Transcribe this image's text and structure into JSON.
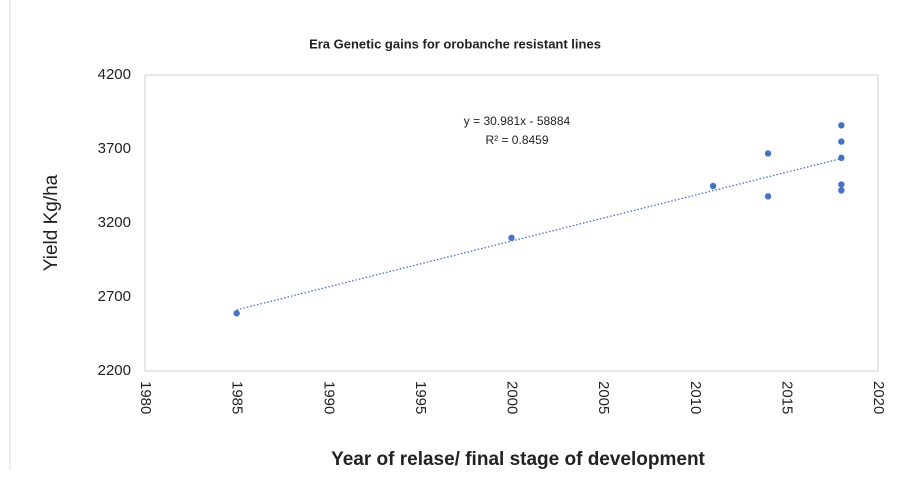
{
  "chart_data": {
    "type": "scatter",
    "title": "Era Genetic gains for orobanche  resistant lines",
    "xlabel": "Year of relase/ final stage of development",
    "ylabel": "Yield Kg/ha",
    "x": [
      1985,
      2000,
      2011,
      2014,
      2014,
      2018,
      2018,
      2018,
      2018,
      2018
    ],
    "values": [
      2590,
      3100,
      3450,
      3670,
      3380,
      3860,
      3750,
      3640,
      3460,
      3420
    ],
    "color": "#4472c4",
    "xlim": [
      1980,
      2020
    ],
    "xticks": [
      1980,
      1985,
      1990,
      1995,
      2000,
      2005,
      2010,
      2015,
      2020
    ],
    "ylim": [
      2200,
      4200
    ],
    "yticks": [
      2200,
      2700,
      3200,
      3700,
      4200
    ],
    "grid": false,
    "trendline": {
      "slope": 30.981,
      "intercept": -58884
    },
    "equation": "y = 30.981x - 58884",
    "r_squared": "R² = 0.8459"
  }
}
